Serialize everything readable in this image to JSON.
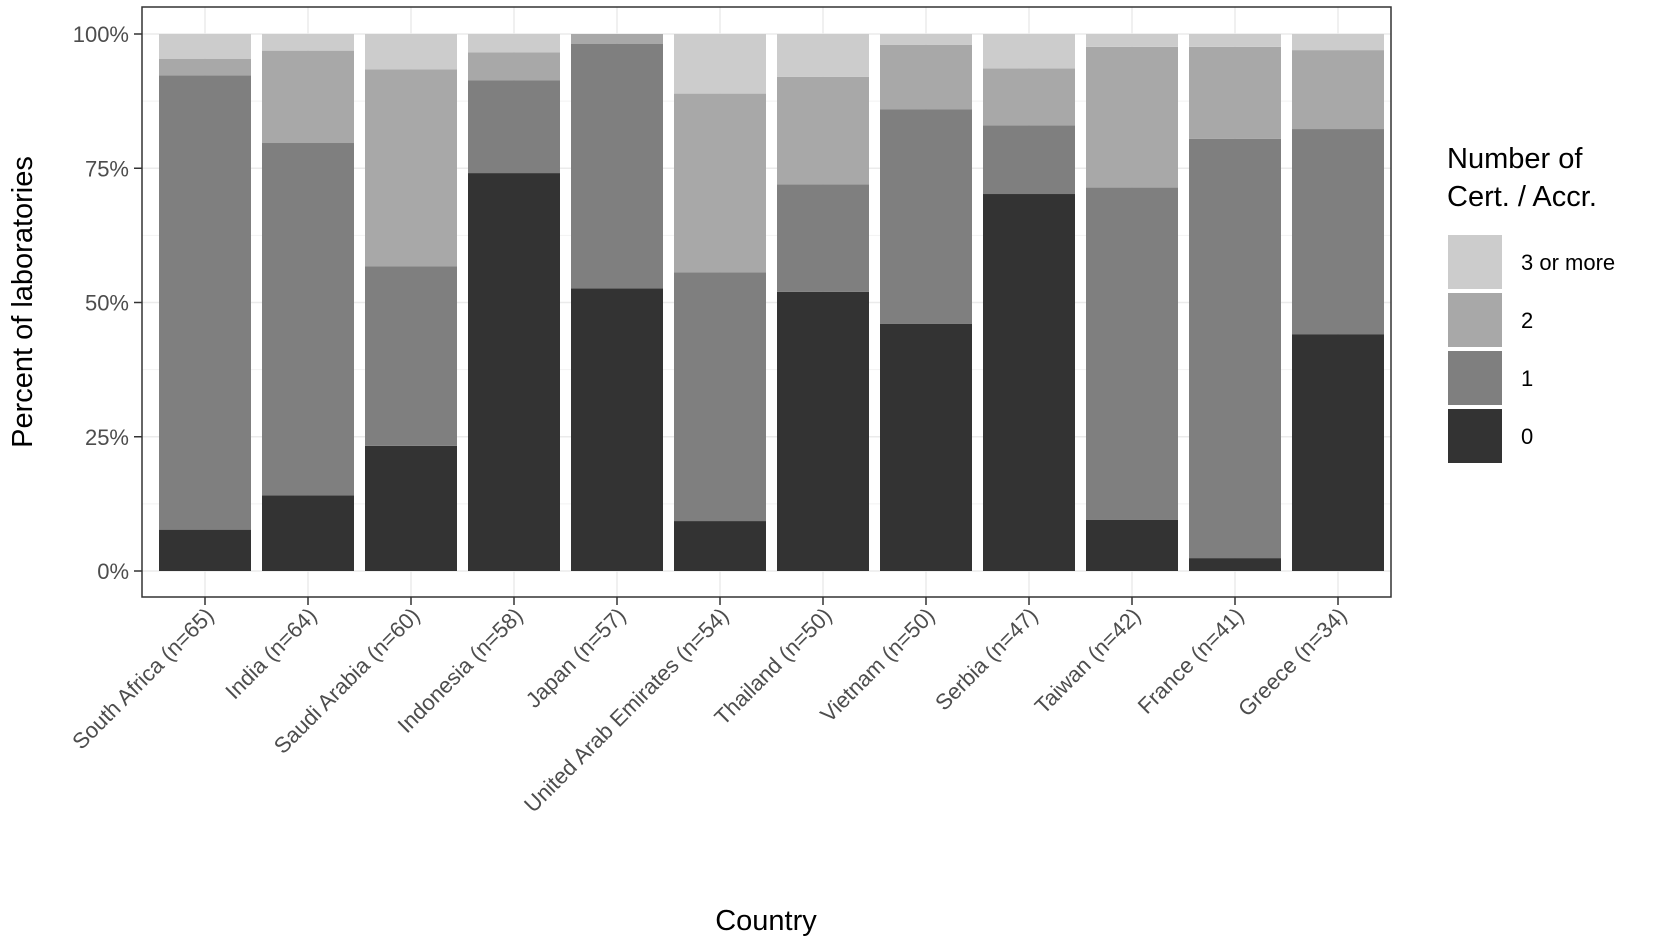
{
  "chart_data": {
    "type": "bar",
    "stacked": true,
    "percent": true,
    "xlabel": "Country",
    "ylabel": "Percent of laboratories",
    "ylim": [
      0,
      100
    ],
    "yticks": [
      "0%",
      "25%",
      "50%",
      "75%",
      "100%"
    ],
    "grid": true,
    "legend": {
      "title": "Number of\nCert. / Accr.",
      "position": "right"
    },
    "categories": [
      "South Africa (n=65)",
      "India (n=64)",
      "Saudi Arabia (n=60)",
      "Indonesia (n=58)",
      "Japan (n=57)",
      "United Arab Emirates (n=54)",
      "Thailand (n=50)",
      "Vietnam (n=50)",
      "Serbia (n=47)",
      "Taiwan (n=42)",
      "France (n=41)",
      "Greece (n=34)"
    ],
    "series": [
      {
        "name": "0",
        "color": "#333333",
        "values": [
          7.7,
          14.1,
          23.3,
          74.1,
          52.6,
          9.3,
          52.0,
          46.0,
          70.2,
          9.5,
          2.4,
          44.1
        ]
      },
      {
        "name": "1",
        "color": "#7f7f7f",
        "values": [
          84.6,
          65.6,
          33.4,
          17.3,
          45.6,
          46.3,
          20.0,
          40.0,
          12.8,
          61.9,
          78.1,
          38.2
        ]
      },
      {
        "name": "2",
        "color": "#a8a8a8",
        "values": [
          3.1,
          17.2,
          36.7,
          5.2,
          1.8,
          33.3,
          20.0,
          12.0,
          10.6,
          26.2,
          17.1,
          14.7
        ]
      },
      {
        "name": "3 or more",
        "color": "#cccccc",
        "values": [
          4.6,
          3.1,
          6.6,
          3.4,
          0.0,
          11.1,
          8.0,
          2.0,
          6.4,
          2.4,
          2.4,
          3.0
        ]
      }
    ]
  }
}
